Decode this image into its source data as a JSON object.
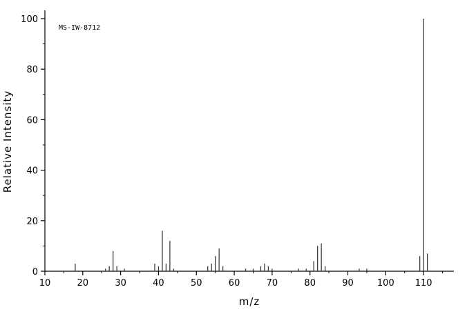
{
  "chart_data": {
    "type": "bar",
    "title": "",
    "annotation": "MS-IW-8712",
    "xlabel": "m/z",
    "ylabel": "Relative Intensity",
    "xlim": [
      10,
      118
    ],
    "ylim": [
      0,
      100
    ],
    "x_major_ticks": [
      10,
      20,
      30,
      40,
      50,
      60,
      70,
      80,
      90,
      100,
      110
    ],
    "x_minor_step": 5,
    "y_major_ticks": [
      0,
      20,
      40,
      60,
      80,
      100
    ],
    "y_minor_step": 10,
    "grid": false,
    "legend": "none",
    "colors": {
      "axis": "#000000",
      "peaks": "#3c3c3c",
      "background": "#ffffff"
    },
    "peaks": [
      [
        18,
        3
      ],
      [
        26,
        1
      ],
      [
        27,
        2
      ],
      [
        28,
        8
      ],
      [
        29,
        2
      ],
      [
        31,
        1
      ],
      [
        39,
        3
      ],
      [
        40,
        2
      ],
      [
        41,
        16
      ],
      [
        42,
        3
      ],
      [
        43,
        12
      ],
      [
        44,
        1
      ],
      [
        53,
        2
      ],
      [
        54,
        3
      ],
      [
        55,
        6
      ],
      [
        56,
        9
      ],
      [
        57,
        2
      ],
      [
        63,
        1
      ],
      [
        65,
        1
      ],
      [
        67,
        2
      ],
      [
        68,
        3
      ],
      [
        69,
        2
      ],
      [
        70,
        1
      ],
      [
        77,
        1
      ],
      [
        79,
        1
      ],
      [
        81,
        4
      ],
      [
        82,
        10
      ],
      [
        83,
        11
      ],
      [
        84,
        2
      ],
      [
        93,
        1
      ],
      [
        95,
        1
      ],
      [
        109,
        6
      ],
      [
        110,
        100
      ],
      [
        111,
        7
      ]
    ]
  }
}
